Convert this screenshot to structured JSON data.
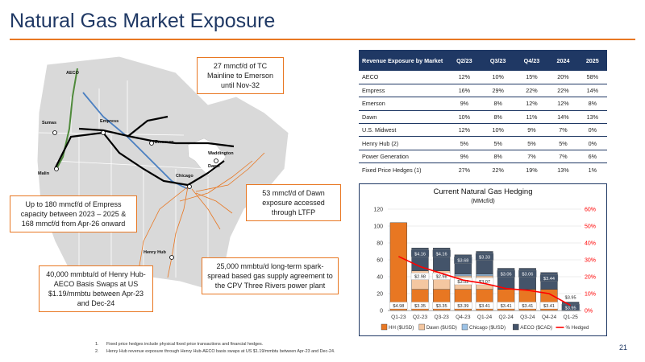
{
  "page": {
    "title": "Natural Gas Market Exposure",
    "page_number": "21"
  },
  "map": {
    "labels": {
      "sumas": "Sumas",
      "aeco": "AECO",
      "empress": "Empress",
      "malin": "Malin",
      "emerson": "Emerson",
      "waddington": "Waddington",
      "dawn": "Dawn",
      "chicago": "Chicago",
      "henry_hub": "Henry Hub"
    },
    "callouts": {
      "tc_mainline": "27 mmcf/d of TC Mainline to Emerson until Nov-32",
      "empress": "Up to 180 mmcf/d of Empress capacity between 2023 – 2025 & 168 mmcf/d from Apr-26 onward",
      "dawn": "53 mmcf/d of Dawn exposure accessed through LTFP",
      "henry_hub": "40,000 mmbtu/d of Henry Hub-AECO Basis Swaps at US $1.19/mmbtu between Apr-23 and Dec-24",
      "cpv": "25,000 mmbtu/d long-term spark-spread based gas supply agreement to the CPV Three Rivers power plant"
    },
    "colors": {
      "line": "#000000",
      "blue_pipe": "#4a7fc1",
      "green_pipe": "#4f8a3b",
      "orange_pipe": "#e87722",
      "land": "#d9d9d9"
    }
  },
  "table": {
    "header": [
      "Revenue Exposure by Market",
      "Q2/23",
      "Q3/23",
      "Q4/23",
      "2024",
      "2025"
    ],
    "rows": [
      [
        "AECO",
        "12%",
        "10%",
        "15%",
        "20%",
        "58%"
      ],
      [
        "Empress",
        "16%",
        "29%",
        "22%",
        "22%",
        "14%"
      ],
      [
        "Emerson",
        "9%",
        "8%",
        "12%",
        "12%",
        "8%"
      ],
      [
        "Dawn",
        "10%",
        "8%",
        "11%",
        "14%",
        "13%"
      ],
      [
        "U.S. Midwest",
        "12%",
        "10%",
        "9%",
        "7%",
        "0%"
      ],
      [
        "Henry Hub (2)",
        "5%",
        "5%",
        "5%",
        "5%",
        "0%"
      ],
      [
        "Power Generation",
        "9%",
        "8%",
        "7%",
        "7%",
        "6%"
      ],
      [
        "Fixed Price Hedges (1)",
        "27%",
        "22%",
        "19%",
        "13%",
        "1%"
      ]
    ]
  },
  "chart_data": {
    "type": "bar",
    "title": "Current Natural Gas Hedging",
    "subtitle": "(MMcf/d)",
    "categories": [
      "Q1-23",
      "Q2-23",
      "Q3-23",
      "Q4-23",
      "Q1-24",
      "Q2-24",
      "Q3-24",
      "Q4-24",
      "Q1-25"
    ],
    "stacked": true,
    "series": [
      {
        "name": "HH ($USD)",
        "color": "#e87722",
        "values": [
          104,
          25,
          25,
          25,
          25,
          25,
          25,
          25,
          0
        ]
      },
      {
        "name": "Dawn ($USD)",
        "color": "#f4c7a1",
        "values": [
          0,
          22,
          22,
          16,
          16,
          0,
          0,
          0,
          0
        ]
      },
      {
        "name": "Chicago ($USD)",
        "color": "#9dc3e6",
        "values": [
          0,
          0,
          0,
          2,
          2,
          0,
          0,
          0,
          0
        ]
      },
      {
        "name": "AECO ($CAD)",
        "color": "#44546a",
        "values": [
          0,
          27,
          27,
          23,
          27,
          25,
          25,
          20,
          10
        ]
      },
      {
        "name": "% Hedged",
        "color": "#ff0000",
        "type": "line",
        "axis": "right",
        "values": [
          32,
          26,
          22,
          18,
          16,
          13,
          12,
          10,
          3
        ]
      }
    ],
    "bar_labels": [
      [
        "$4.98",
        "",
        "",
        ""
      ],
      [
        "$3.35",
        "$2.98",
        "",
        "$4.16"
      ],
      [
        "$3.35",
        "$2.98",
        "",
        "$4.16"
      ],
      [
        "$3.39",
        "$3.02",
        "",
        "$3.68"
      ],
      [
        "$3.41",
        "$3.07",
        "",
        "$3.33"
      ],
      [
        "$3.41",
        "",
        "",
        "$3.06"
      ],
      [
        "$3.41",
        "",
        "",
        "$3.06"
      ],
      [
        "$3.41",
        "",
        "",
        "$3.44"
      ],
      [
        "",
        "",
        "",
        "$3.95"
      ]
    ],
    "y_left": {
      "min": 0,
      "max": 120,
      "ticks": [
        "0",
        "20",
        "40",
        "60",
        "80",
        "100",
        "120"
      ]
    },
    "y_right": {
      "min": 0,
      "max": 60,
      "ticks": [
        "0%",
        "10%",
        "20%",
        "30%",
        "40%",
        "50%",
        "60%"
      ]
    },
    "legend": [
      "HH ($USD)",
      "Dawn ($USD)",
      "Chicago ($USD)",
      "AECO ($CAD)",
      "% Hedged"
    ],
    "legend_position": "bottom",
    "grid": true
  },
  "footnotes": [
    {
      "num": "1.",
      "text": "Fixed price hedges include physical fixed price transactions and financial hedges."
    },
    {
      "num": "2.",
      "text": "Henry Hub revenue exposure through Henry Hub-AECO basis swaps at US $1.19/mmbtu between Apr-23 and Dec-24."
    }
  ]
}
